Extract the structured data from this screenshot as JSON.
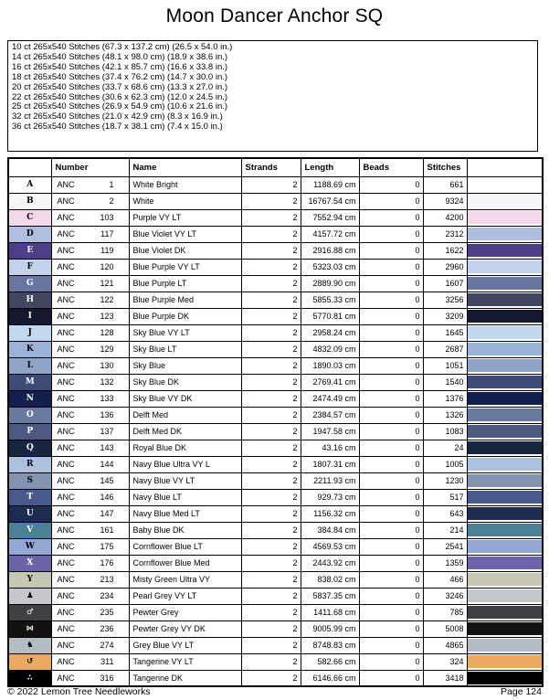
{
  "page": {
    "title": "Moon Dancer Anchor SQ",
    "footer_left": "© 2022 Lemon Tree Needleworks",
    "footer_right": "Page 124"
  },
  "fabric_sizes": [
    "10 ct 265x540 Stitches (67.3 x 137.2 cm) (26.5 x 54.0 in.)",
    "14 ct 265x540 Stitches (48.1 x 98.0 cm) (18.9 x 38.6 in.)",
    "16 ct 265x540 Stitches (42.1 x 85.7 cm) (16.6 x 33.8 in.)",
    "18 ct 265x540 Stitches (37.4 x 76.2 cm) (14.7 x 30.0 in.)",
    "20 ct 265x540 Stitches (33.7 x 68.6 cm) (13.3 x 27.0 in.)",
    "22 ct 265x540 Stitches (30.6 x 62.3 cm) (12.0 x 24.5 in.)",
    "25 ct 265x540 Stitches (26.9 x 54.9 cm) (10.6 x 21.6 in.)",
    "32 ct 265x540 Stitches (21.0 x 42.9 cm) (8.3 x 16.9 in.)",
    "36 ct 265x540 Stitches (18.7 x 38.1 cm) (7.4 x 15.0 in.)"
  ],
  "table": {
    "headers": {
      "symbol": "",
      "number": "Number",
      "name": "Name",
      "strands": "Strands",
      "length": "Length",
      "beads": "Beads",
      "stitches": "Stitches",
      "swatch": ""
    },
    "rows": [
      {
        "symbol": "A",
        "is_dingbat": false,
        "symbol_bg": "#ffffff",
        "symbol_fg": "#000000",
        "brand": "ANC",
        "number": "1",
        "name": "White Bright",
        "strands": "2",
        "length": "1188.69 cm",
        "beads": "0",
        "stitches": "661",
        "swatch_color": "#ffffff"
      },
      {
        "symbol": "B",
        "is_dingbat": false,
        "symbol_bg": "#f6f6f8",
        "symbol_fg": "#000000",
        "brand": "ANC",
        "number": "2",
        "name": "White",
        "strands": "2",
        "length": "16767.54 cm",
        "beads": "0",
        "stitches": "9324",
        "swatch_color": "#f6f6f8"
      },
      {
        "symbol": "C",
        "is_dingbat": false,
        "symbol_bg": "#f3d9e9",
        "symbol_fg": "#000000",
        "brand": "ANC",
        "number": "103",
        "name": "Purple VY LT",
        "strands": "2",
        "length": "7552.94 cm",
        "beads": "0",
        "stitches": "4200",
        "swatch_color": "#f3d9e9"
      },
      {
        "symbol": "D",
        "is_dingbat": false,
        "symbol_bg": "#b0bede",
        "symbol_fg": "#000000",
        "brand": "ANC",
        "number": "117",
        "name": "Blue Violet VY LT",
        "strands": "2",
        "length": "4157.72 cm",
        "beads": "0",
        "stitches": "2312",
        "swatch_color": "#b0bede"
      },
      {
        "symbol": "E",
        "is_dingbat": false,
        "symbol_bg": "#4e3e87",
        "symbol_fg": "#ffffff",
        "brand": "ANC",
        "number": "119",
        "name": "Blue Violet DK",
        "strands": "2",
        "length": "2916.88 cm",
        "beads": "0",
        "stitches": "1622",
        "swatch_color": "#4e3e87"
      },
      {
        "symbol": "F",
        "is_dingbat": false,
        "symbol_bg": "#c3d2ec",
        "symbol_fg": "#000000",
        "brand": "ANC",
        "number": "120",
        "name": "Blue Purple VY LT",
        "strands": "2",
        "length": "5323.03 cm",
        "beads": "0",
        "stitches": "2960",
        "swatch_color": "#c3d2ec"
      },
      {
        "symbol": "G",
        "is_dingbat": false,
        "symbol_bg": "#68759f",
        "symbol_fg": "#ffffff",
        "brand": "ANC",
        "number": "121",
        "name": "Blue Purple LT",
        "strands": "2",
        "length": "2889.90 cm",
        "beads": "0",
        "stitches": "1607",
        "swatch_color": "#68759f"
      },
      {
        "symbol": "H",
        "is_dingbat": false,
        "symbol_bg": "#424660",
        "symbol_fg": "#ffffff",
        "brand": "ANC",
        "number": "122",
        "name": "Blue Purple Med",
        "strands": "2",
        "length": "5855.33 cm",
        "beads": "0",
        "stitches": "3256",
        "swatch_color": "#424660"
      },
      {
        "symbol": "I",
        "is_dingbat": false,
        "symbol_bg": "#15172e",
        "symbol_fg": "#ffffff",
        "brand": "ANC",
        "number": "123",
        "name": "Blue Purple DK",
        "strands": "2",
        "length": "5770.81 cm",
        "beads": "0",
        "stitches": "3209",
        "swatch_color": "#15172e"
      },
      {
        "symbol": "J",
        "is_dingbat": false,
        "symbol_bg": "#c2d7f0",
        "symbol_fg": "#000000",
        "brand": "ANC",
        "number": "128",
        "name": "Sky Blue VY LT",
        "strands": "2",
        "length": "2958.24 cm",
        "beads": "0",
        "stitches": "1645",
        "swatch_color": "#c2d7f0"
      },
      {
        "symbol": "K",
        "is_dingbat": false,
        "symbol_bg": "#9bb2d7",
        "symbol_fg": "#000000",
        "brand": "ANC",
        "number": "129",
        "name": "Sky Blue LT",
        "strands": "2",
        "length": "4832.09 cm",
        "beads": "0",
        "stitches": "2687",
        "swatch_color": "#9bb2d7"
      },
      {
        "symbol": "L",
        "is_dingbat": false,
        "symbol_bg": "#8fa3c8",
        "symbol_fg": "#000000",
        "brand": "ANC",
        "number": "130",
        "name": "Sky Blue",
        "strands": "2",
        "length": "1890.03 cm",
        "beads": "0",
        "stitches": "1051",
        "swatch_color": "#8fa3c8"
      },
      {
        "symbol": "M",
        "is_dingbat": false,
        "symbol_bg": "#3e4b76",
        "symbol_fg": "#ffffff",
        "brand": "ANC",
        "number": "132",
        "name": "Sky Blue DK",
        "strands": "2",
        "length": "2769.41 cm",
        "beads": "0",
        "stitches": "1540",
        "swatch_color": "#3e4b76"
      },
      {
        "symbol": "N",
        "is_dingbat": false,
        "symbol_bg": "#13204f",
        "symbol_fg": "#ffffff",
        "brand": "ANC",
        "number": "133",
        "name": "Sky Blue VY DK",
        "strands": "2",
        "length": "2474.49 cm",
        "beads": "0",
        "stitches": "1376",
        "swatch_color": "#13204f"
      },
      {
        "symbol": "O",
        "is_dingbat": false,
        "symbol_bg": "#697aa0",
        "symbol_fg": "#ffffff",
        "brand": "ANC",
        "number": "136",
        "name": "Delft Med",
        "strands": "2",
        "length": "2384.57 cm",
        "beads": "0",
        "stitches": "1326",
        "swatch_color": "#697aa0"
      },
      {
        "symbol": "P",
        "is_dingbat": false,
        "symbol_bg": "#4d5981",
        "symbol_fg": "#ffffff",
        "brand": "ANC",
        "number": "137",
        "name": "Delft Med DK",
        "strands": "2",
        "length": "1947.58 cm",
        "beads": "0",
        "stitches": "1083",
        "swatch_color": "#4d5981"
      },
      {
        "symbol": "Q",
        "is_dingbat": false,
        "symbol_bg": "#182640",
        "symbol_fg": "#ffffff",
        "brand": "ANC",
        "number": "143",
        "name": "Royal Blue DK",
        "strands": "2",
        "length": "43.16 cm",
        "beads": "0",
        "stitches": "24",
        "swatch_color": "#182640"
      },
      {
        "symbol": "R",
        "is_dingbat": false,
        "symbol_bg": "#abc1de",
        "symbol_fg": "#000000",
        "brand": "ANC",
        "number": "144",
        "name": "Navy Blue Ultra VY L",
        "strands": "2",
        "length": "1807.31 cm",
        "beads": "0",
        "stitches": "1005",
        "swatch_color": "#abc1de"
      },
      {
        "symbol": "S",
        "is_dingbat": false,
        "symbol_bg": "#8493af",
        "symbol_fg": "#000000",
        "brand": "ANC",
        "number": "145",
        "name": "Navy Blue VY LT",
        "strands": "2",
        "length": "2211.93 cm",
        "beads": "0",
        "stitches": "1230",
        "swatch_color": "#8493af"
      },
      {
        "symbol": "T",
        "is_dingbat": false,
        "symbol_bg": "#475a8b",
        "symbol_fg": "#ffffff",
        "brand": "ANC",
        "number": "146",
        "name": "Navy Blue LT",
        "strands": "2",
        "length": "929.73 cm",
        "beads": "0",
        "stitches": "517",
        "swatch_color": "#475a8b"
      },
      {
        "symbol": "U",
        "is_dingbat": false,
        "symbol_bg": "#1e2c4f",
        "symbol_fg": "#ffffff",
        "brand": "ANC",
        "number": "147",
        "name": "Navy Blue Med LT",
        "strands": "2",
        "length": "1156.32 cm",
        "beads": "0",
        "stitches": "643",
        "swatch_color": "#1e2c4f"
      },
      {
        "symbol": "V",
        "is_dingbat": false,
        "symbol_bg": "#4b8097",
        "symbol_fg": "#ffffff",
        "brand": "ANC",
        "number": "161",
        "name": "Baby Blue DK",
        "strands": "2",
        "length": "384.84 cm",
        "beads": "0",
        "stitches": "214",
        "swatch_color": "#4b8097"
      },
      {
        "symbol": "W",
        "is_dingbat": false,
        "symbol_bg": "#93a9d3",
        "symbol_fg": "#000000",
        "brand": "ANC",
        "number": "175",
        "name": "Cornflower Blue LT",
        "strands": "2",
        "length": "4569.53 cm",
        "beads": "0",
        "stitches": "2541",
        "swatch_color": "#93a9d3"
      },
      {
        "symbol": "X",
        "is_dingbat": false,
        "symbol_bg": "#6b64a9",
        "symbol_fg": "#ffffff",
        "brand": "ANC",
        "number": "176",
        "name": "Cornflower Blue Med",
        "strands": "2",
        "length": "2443.92 cm",
        "beads": "0",
        "stitches": "1359",
        "swatch_color": "#6b64a9"
      },
      {
        "symbol": "Y",
        "is_dingbat": false,
        "symbol_bg": "#c6c7b3",
        "symbol_fg": "#000000",
        "brand": "ANC",
        "number": "213",
        "name": "Misty Green Ultra VY",
        "strands": "2",
        "length": "838.02 cm",
        "beads": "0",
        "stitches": "466",
        "swatch_color": "#c6c7b3"
      },
      {
        "symbol": "♟",
        "is_dingbat": true,
        "symbol_bg": "#c5c7cd",
        "symbol_fg": "#000000",
        "brand": "ANC",
        "number": "234",
        "name": "Pearl Grey VY LT",
        "strands": "2",
        "length": "5837.35 cm",
        "beads": "0",
        "stitches": "3246",
        "swatch_color": "#c5c7cd"
      },
      {
        "symbol": "♂",
        "is_dingbat": true,
        "symbol_bg": "#404042",
        "symbol_fg": "#ffffff",
        "brand": "ANC",
        "number": "235",
        "name": "Pewter Grey",
        "strands": "2",
        "length": "1411.68 cm",
        "beads": "0",
        "stitches": "785",
        "swatch_color": "#404042"
      },
      {
        "symbol": "⋈",
        "is_dingbat": true,
        "symbol_bg": "#121212",
        "symbol_fg": "#ffffff",
        "brand": "ANC",
        "number": "236",
        "name": "Pewter Grey VY DK",
        "strands": "2",
        "length": "9005.99 cm",
        "beads": "0",
        "stitches": "5008",
        "swatch_color": "#121212"
      },
      {
        "symbol": "♞",
        "is_dingbat": true,
        "symbol_bg": "#b4bdc3",
        "symbol_fg": "#000000",
        "brand": "ANC",
        "number": "274",
        "name": "Grey Blue VY LT",
        "strands": "2",
        "length": "8748.83 cm",
        "beads": "0",
        "stitches": "4865",
        "swatch_color": "#b4bdc3"
      },
      {
        "symbol": "↺",
        "is_dingbat": true,
        "symbol_bg": "#eaa962",
        "symbol_fg": "#000000",
        "brand": "ANC",
        "number": "311",
        "name": "Tangerine VY LT",
        "strands": "2",
        "length": "582.66 cm",
        "beads": "0",
        "stitches": "324",
        "swatch_color": "#eaa962"
      },
      {
        "symbol": "∴",
        "is_dingbat": true,
        "symbol_bg": "#000000",
        "symbol_fg": "#ffffff",
        "brand": "ANC",
        "number": "316",
        "name": "Tangerine DK",
        "strands": "2",
        "length": "6146.66 cm",
        "beads": "0",
        "stitches": "3418",
        "swatch_color": "#000000"
      }
    ]
  }
}
